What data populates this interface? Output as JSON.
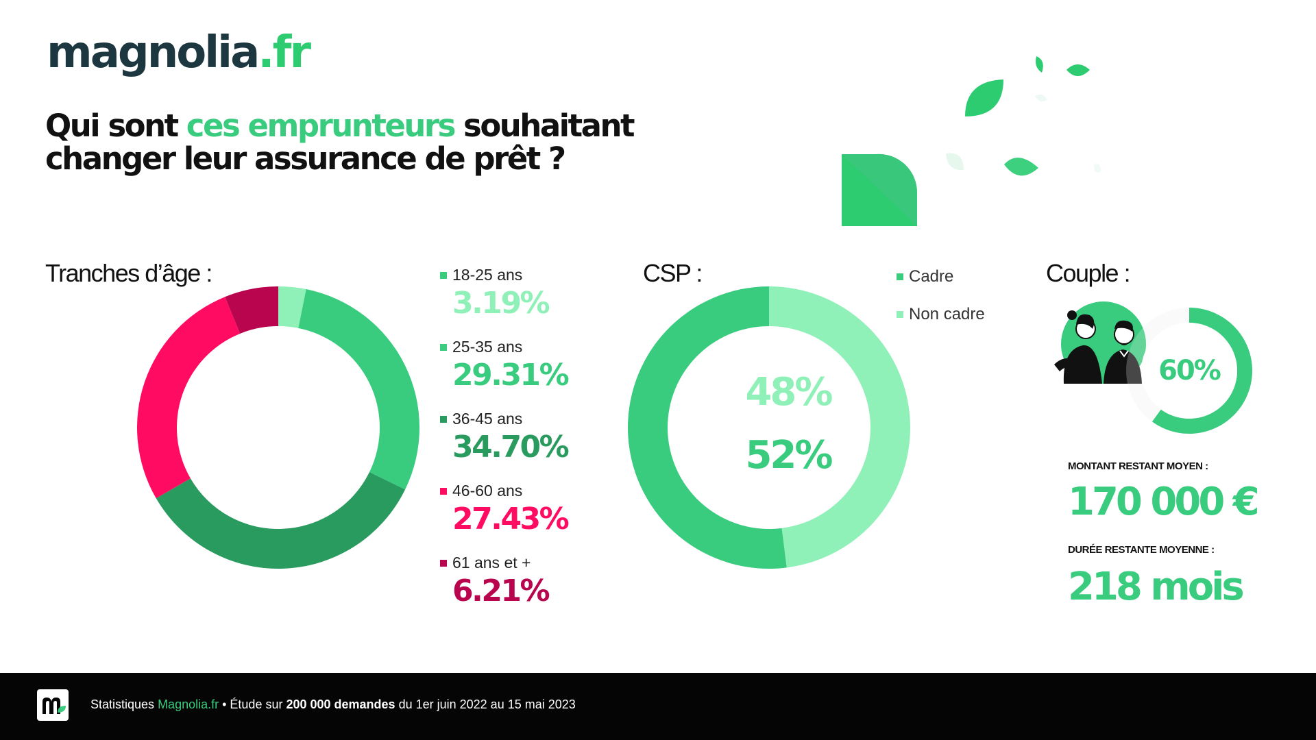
{
  "logo": {
    "name": "magnolia",
    "tld": ".fr"
  },
  "headline": {
    "part1": "Qui sont ",
    "highlight": "ces emprunteurs",
    "part2": " souhaitant",
    "line2": "changer leur assurance de prêt ?"
  },
  "sections": {
    "age_title": "Tranches d’âge :",
    "csp_title": "CSP :",
    "couple_title": "Couple :"
  },
  "colors": {
    "green": "#39cc7e",
    "dark_green": "#2a9b5f",
    "light_green": "#8ff0b8",
    "pink": "#ff0b62",
    "dark_pink": "#b8054e",
    "ring_bg": "#ececec"
  },
  "chart_data": [
    {
      "type": "pie",
      "variant": "donut",
      "categories": [
        "18-25 ans",
        "25-35 ans",
        "36-45 ans",
        "46-60 ans",
        "61 ans et +"
      ],
      "values": [
        3.19,
        29.31,
        34.7,
        27.43,
        6.21
      ],
      "value_labels": [
        "3.19%",
        "29.31%",
        "34.70%",
        "27.43%",
        "6.21%"
      ],
      "colors": [
        "#8ff0b8",
        "#39cc7e",
        "#2a9b5f",
        "#ff0b62",
        "#b8054e"
      ],
      "title": "Tranches d’âge :"
    },
    {
      "type": "pie",
      "variant": "donut",
      "categories": [
        "Cadre",
        "Non cadre"
      ],
      "values": [
        52,
        48
      ],
      "value_labels": [
        "52%",
        "48%"
      ],
      "colors": [
        "#39cc7e",
        "#8ff0b8"
      ],
      "title": "CSP :"
    },
    {
      "type": "pie",
      "variant": "progress-ring",
      "values": [
        60
      ],
      "value_labels": [
        "60%"
      ],
      "title": "Couple :"
    }
  ],
  "stats": {
    "montant_label": "MONTANT RESTANT MOYEN :",
    "montant_value": "170 000 €",
    "duree_label": "DURÉE RESTANTE MOYENNE :",
    "duree_value": "218 mois"
  },
  "footer": {
    "prefix": "Statistiques ",
    "brand": "Magnolia.fr",
    "mid": " • Étude sur ",
    "bold": "200 000 demandes",
    "suffix": " du 1er juin 2022 au 15 mai 2023"
  }
}
